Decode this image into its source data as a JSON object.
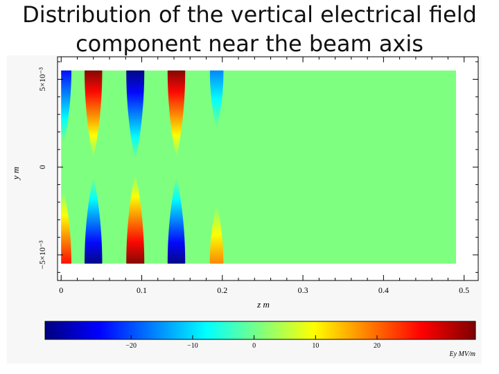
{
  "slide": {
    "title_line1": "Distribution of the vertical electrical field",
    "title_line2": "component near the beam axis"
  },
  "chart_data": {
    "type": "heatmap",
    "title": "Distribution of the vertical electrical field component near the beam axis",
    "xlabel": "z m",
    "ylabel": "y m",
    "xlim": [
      -0.0045,
      0.5175
    ],
    "ylim": [
      -0.00646,
      0.00628
    ],
    "x_ticks": [
      {
        "value": 0,
        "label": "0"
      },
      {
        "value": 0.1,
        "label": "0.1"
      },
      {
        "value": 0.2,
        "label": "0.2"
      },
      {
        "value": 0.3,
        "label": "0.3"
      },
      {
        "value": 0.4,
        "label": "0.4"
      },
      {
        "value": 0.5,
        "label": "0.5"
      }
    ],
    "y_ticks": [
      {
        "value": -0.005,
        "label": "−5×10⁻³"
      },
      {
        "value": 0,
        "label": "0"
      },
      {
        "value": 0.005,
        "label": "5×10⁻³"
      }
    ],
    "data_extent": {
      "z": [
        0,
        0.49
      ],
      "y": [
        -0.0055,
        0.0055
      ]
    },
    "background_value": 0,
    "field_lobes": [
      {
        "z": 0.003,
        "sign": -1,
        "amp": 0.7
      },
      {
        "z": 0.04,
        "sign": 1,
        "amp": 0.95
      },
      {
        "z": 0.092,
        "sign": -1,
        "amp": 1.0
      },
      {
        "z": 0.143,
        "sign": 1,
        "amp": 0.95
      },
      {
        "z": 0.193,
        "sign": -1,
        "amp": 0.45
      }
    ],
    "colorbar": {
      "label": "Ey MV/m",
      "range": [
        -34,
        36
      ],
      "ticks": [
        {
          "value": -20,
          "label": "−20"
        },
        {
          "value": -10,
          "label": "−10"
        },
        {
          "value": 0,
          "label": "0"
        },
        {
          "value": 10,
          "label": "10"
        },
        {
          "value": 20,
          "label": "20"
        }
      ],
      "colors": [
        "#00007f",
        "#0000ff",
        "#007fff",
        "#00ffff",
        "#7fff7f",
        "#ffff00",
        "#ff7f00",
        "#ff0000",
        "#7f0000"
      ]
    }
  }
}
